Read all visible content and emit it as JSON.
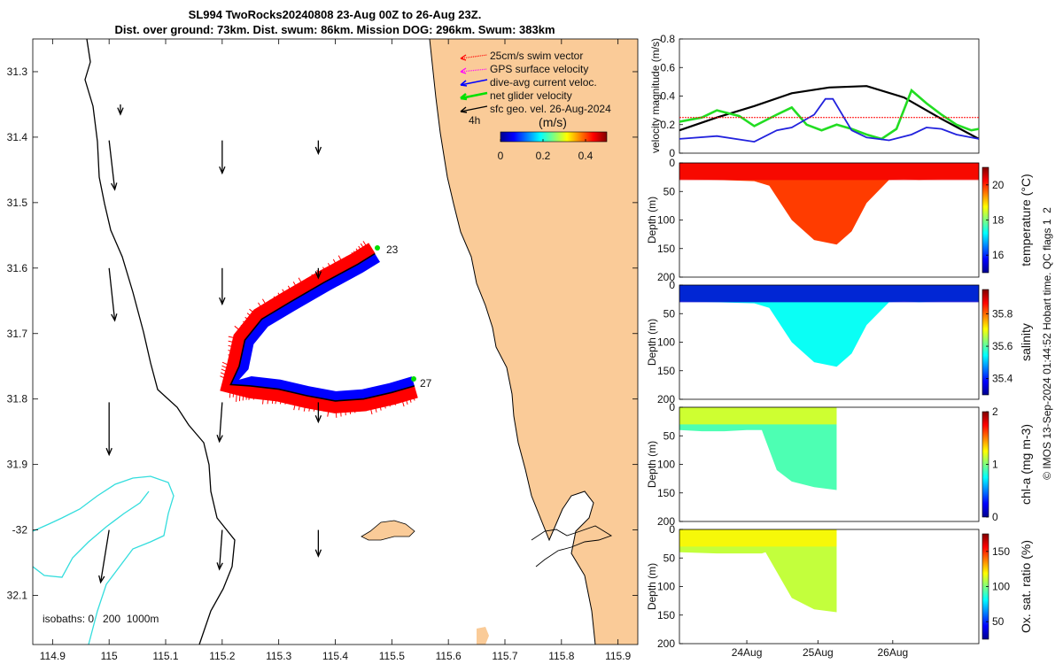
{
  "chart_data": [
    {
      "type": "map",
      "title": "SL994 TwoRocks20240808 23-Aug 00Z to 26-Aug 23Z.",
      "subtitle": "Dist. over ground: 73km. Dist. swum: 86km. Mission DOG: 296km. Swum: 383km",
      "xlim": [
        114.865,
        115.935
      ],
      "ylim": [
        -32.175,
        -31.25
      ],
      "x_ticks": [
        114.9,
        115,
        115.1,
        115.2,
        115.3,
        115.4,
        115.5,
        115.6,
        115.7,
        115.8,
        115.9
      ],
      "x_tick_labels": [
        "114.9",
        "115",
        "115.1",
        "115.2",
        "115.3",
        "115.4",
        "115.5",
        "115.6",
        "115.7",
        "115.8",
        "115.9"
      ],
      "y_ticks": [
        -31.3,
        -31.4,
        -31.5,
        -31.6,
        -31.7,
        -31.8,
        -31.9,
        -32,
        -32.1
      ],
      "y_tick_labels": [
        "31.3",
        "31.4",
        "31.5",
        "31.6",
        "31.7",
        "31.8",
        "31.9",
        "-32",
        "32.1"
      ],
      "legend": [
        {
          "label": "25cm/s swim vector",
          "color": "#ff0000"
        },
        {
          "label": "GPS surface velocity",
          "color": "#ff00ff"
        },
        {
          "label": "dive-avg current veloc.",
          "color": "#0000ff"
        },
        {
          "label": "net glider velocity",
          "color": "#00e000"
        },
        {
          "label": "sfc geo. vel. 26-Aug-2024",
          "color": "#000000"
        }
      ],
      "legend_time": "4h",
      "speed_scale": {
        "title": "(m/s)",
        "ticks": [
          0,
          0.2,
          0.4
        ],
        "tick_labels": [
          "0",
          "0.2",
          "0.4"
        ],
        "range": [
          0,
          0.5
        ]
      },
      "track_labels": [
        "23",
        "27"
      ],
      "isobaths_label": "isobaths: 0   200  1000m",
      "land_color": "#facb98",
      "isobath_200_color": "#000000",
      "isobath_1000_color": "#33dddd",
      "track": [
        [
          115.47,
          -31.578
        ],
        [
          115.44,
          -31.594
        ],
        [
          115.38,
          -31.622
        ],
        [
          115.32,
          -31.652
        ],
        [
          115.27,
          -31.678
        ],
        [
          115.24,
          -31.71
        ],
        [
          115.23,
          -31.75
        ],
        [
          115.215,
          -31.778
        ],
        [
          115.25,
          -31.78
        ],
        [
          115.3,
          -31.785
        ],
        [
          115.35,
          -31.795
        ],
        [
          115.4,
          -31.803
        ],
        [
          115.45,
          -31.8
        ],
        [
          115.5,
          -31.79
        ],
        [
          115.54,
          -31.78
        ]
      ],
      "geo_vectors_origin": [
        [
          115.02,
          -31.35
        ],
        [
          115.0,
          -31.405
        ],
        [
          115.2,
          -31.405
        ],
        [
          115.37,
          -31.405
        ],
        [
          115.0,
          -31.6
        ],
        [
          115.2,
          -31.6
        ],
        [
          115.37,
          -31.6
        ],
        [
          115.0,
          -31.805
        ],
        [
          115.2,
          -31.805
        ],
        [
          115.37,
          -31.805
        ],
        [
          115.0,
          -32.0
        ],
        [
          115.2,
          -32.0
        ],
        [
          115.37,
          -32.0
        ]
      ],
      "geo_vectors_tip": [
        [
          115.02,
          -31.365
        ],
        [
          115.01,
          -31.48
        ],
        [
          115.2,
          -31.455
        ],
        [
          115.37,
          -31.425
        ],
        [
          115.01,
          -31.68
        ],
        [
          115.2,
          -31.655
        ],
        [
          115.37,
          -31.615
        ],
        [
          115.0,
          -31.885
        ],
        [
          115.195,
          -31.865
        ],
        [
          115.37,
          -31.835
        ],
        [
          114.985,
          -32.08
        ],
        [
          115.195,
          -32.06
        ],
        [
          115.37,
          -32.04
        ]
      ]
    },
    {
      "type": "line",
      "ylabel": "velocity magnitude (m/s)",
      "ylim": [
        0,
        0.8
      ],
      "y_ticks": [
        0,
        0.2,
        0.4,
        0.6,
        0.8
      ],
      "y_tick_labels": [
        "0",
        "0.2",
        "0.4",
        "0.6",
        "0.8"
      ],
      "xlim": [
        0,
        4
      ],
      "series": [
        {
          "name": "sfc geo. vel.",
          "color": "#000000",
          "x": [
            0,
            0.5,
            1,
            1.5,
            2,
            2.5,
            3,
            3.5,
            4
          ],
          "values": [
            0.16,
            0.25,
            0.33,
            0.42,
            0.46,
            0.47,
            0.39,
            0.24,
            0.1
          ]
        },
        {
          "name": "net glider velocity",
          "color": "#22dd22",
          "x": [
            0,
            0.3,
            0.5,
            0.8,
            1,
            1.3,
            1.5,
            1.7,
            1.9,
            2.1,
            2.3,
            2.5,
            2.7,
            2.9,
            3.1,
            3.3,
            3.5,
            3.7,
            3.9,
            4
          ],
          "values": [
            0.22,
            0.25,
            0.3,
            0.26,
            0.19,
            0.27,
            0.32,
            0.2,
            0.16,
            0.2,
            0.17,
            0.13,
            0.1,
            0.17,
            0.44,
            0.35,
            0.27,
            0.2,
            0.16,
            0.17
          ]
        },
        {
          "name": "dive-avg current veloc.",
          "color": "#2222dd",
          "x": [
            0,
            0.5,
            1,
            1.3,
            1.5,
            1.8,
            1.95,
            2.05,
            2.3,
            2.5,
            2.8,
            3.1,
            3.3,
            3.5,
            3.7,
            3.9,
            4
          ],
          "values": [
            0.1,
            0.12,
            0.08,
            0.16,
            0.18,
            0.27,
            0.38,
            0.38,
            0.16,
            0.11,
            0.09,
            0.13,
            0.18,
            0.17,
            0.13,
            0.11,
            0.1
          ]
        },
        {
          "name": "25cm/s swim",
          "color": "#ff0000",
          "x": [
            0,
            4
          ],
          "values": [
            0.25,
            0.25
          ]
        }
      ]
    },
    {
      "type": "heatmap",
      "variable": "temperature",
      "colorbar_label": "temperature (°C)",
      "clim": [
        15,
        21
      ],
      "colorbar_ticks": [
        16,
        18,
        20
      ],
      "colorbar_tick_labels": [
        "16",
        "18",
        "20"
      ],
      "ylabel": "Depth (m)",
      "ylim": [
        200,
        0
      ],
      "y_ticks": [
        0,
        50,
        100,
        150,
        200
      ],
      "y_tick_labels": [
        "0",
        "50",
        "100",
        "150",
        "200"
      ],
      "profile_depth_time": [
        0,
        0.5,
        1,
        1.2,
        1.5,
        1.8,
        2.1,
        2.3,
        2.5,
        2.8,
        3.0,
        3.2,
        3.5,
        4
      ],
      "profile_depth_m": [
        28,
        30,
        32,
        40,
        100,
        135,
        143,
        120,
        70,
        30,
        28,
        30,
        28,
        28
      ],
      "upper_value": 20.3,
      "lower_value": 19.9
    },
    {
      "type": "heatmap",
      "variable": "salinity",
      "colorbar_label": "salinity",
      "clim": [
        35.3,
        35.95
      ],
      "colorbar_ticks": [
        35.4,
        35.6,
        35.8
      ],
      "colorbar_tick_labels": [
        "35.4",
        "35.6",
        "35.8"
      ],
      "ylabel": "Depth (m)",
      "ylim": [
        200,
        0
      ],
      "y_ticks": [
        0,
        50,
        100,
        150,
        200
      ],
      "y_tick_labels": [
        "0",
        "50",
        "100",
        "150",
        "200"
      ],
      "profile_depth_time": [
        0,
        0.5,
        1,
        1.2,
        1.5,
        1.8,
        2.1,
        2.3,
        2.5,
        2.8,
        3.0,
        3.2,
        3.5,
        4
      ],
      "profile_depth_m": [
        28,
        30,
        32,
        40,
        100,
        135,
        143,
        120,
        70,
        30,
        28,
        30,
        28,
        28
      ],
      "upper_value": 35.35,
      "lower_value": 35.55
    },
    {
      "type": "heatmap",
      "variable": "chl-a",
      "colorbar_label": "chl-a (mg m-3)",
      "clim": [
        0,
        2
      ],
      "colorbar_ticks": [
        0,
        1,
        2
      ],
      "colorbar_tick_labels": [
        "0",
        "1",
        "2"
      ],
      "ylabel": "Depth (m)",
      "ylim": [
        200,
        0
      ],
      "y_ticks": [
        0,
        50,
        100,
        150,
        200
      ],
      "y_tick_labels": [
        "0",
        "50",
        "100",
        "150",
        "200"
      ],
      "profile_depth_time": [
        0,
        0.3,
        0.6,
        0.9,
        1.1,
        1.3,
        1.5,
        1.8,
        2.1
      ],
      "profile_depth_m": [
        40,
        42,
        42,
        40,
        40,
        110,
        130,
        140,
        145
      ],
      "data_end_time": 2.1,
      "upper_value": 1.2,
      "lower_value": 0.9
    },
    {
      "type": "heatmap",
      "variable": "Ox. sat. ratio",
      "colorbar_label": "Ox. sat. ratio (%)",
      "clim": [
        25,
        175
      ],
      "colorbar_ticks": [
        50,
        100,
        150
      ],
      "colorbar_tick_labels": [
        "50",
        "100",
        "150"
      ],
      "ylabel": "Depth (m)",
      "ylim": [
        200,
        0
      ],
      "y_ticks": [
        0,
        50,
        100,
        150,
        200
      ],
      "y_tick_labels": [
        "0",
        "50",
        "100",
        "150",
        "200"
      ],
      "x_ticks": [
        0.9,
        1.85,
        2.85
      ],
      "x_tick_labels": [
        "24Aug",
        "25Aug",
        "26Aug"
      ],
      "profile_depth_time": [
        0,
        0.5,
        1.1,
        1.15,
        1.5,
        1.8,
        2.1
      ],
      "profile_depth_m": [
        40,
        42,
        42,
        40,
        120,
        140,
        145
      ],
      "data_end_time": 2.1,
      "upper_value": 120,
      "lower_value": 110
    }
  ],
  "side_note": "© IMOS 13-Sep-2024 01:44:52 Hobart time. QC flags 1  2"
}
